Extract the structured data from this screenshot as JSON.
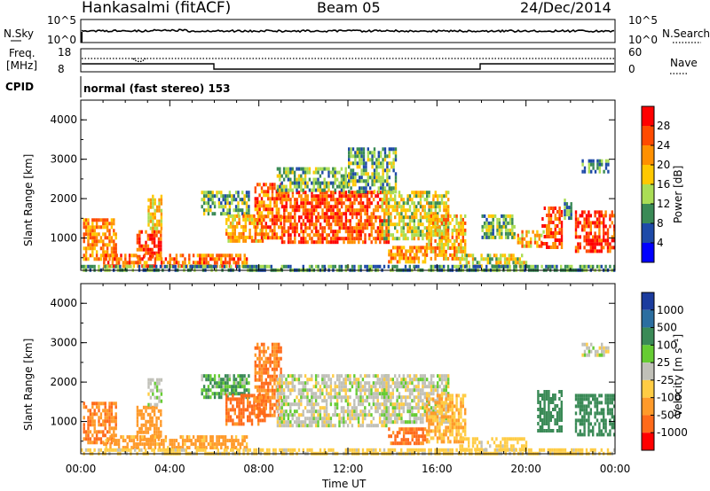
{
  "header": {
    "station": "Hankasalmi (fitACF)",
    "beam": "Beam 05",
    "date": "24/Dec/2014"
  },
  "noise_panel": {
    "left_label": "N.Sky",
    "right_label": "N.Search",
    "left_ticks": [
      "10^5",
      "10^0"
    ],
    "right_ticks": [
      "10^5",
      "10^0"
    ]
  },
  "freq_panel": {
    "left_label_1": "Freq.",
    "left_label_2": "[MHz]",
    "right_label": "Nave",
    "left_ticks": [
      "18",
      "8"
    ],
    "right_ticks": [
      "60",
      "0"
    ]
  },
  "cpid": {
    "label": "CPID",
    "value": "normal (fast stereo) 153"
  },
  "x_axis": {
    "title": "Time UT",
    "ticks": [
      "00:00",
      "04:00",
      "08:00",
      "12:00",
      "16:00",
      "20:00",
      "00:00"
    ]
  },
  "power_colorbar": {
    "title": "Power [dB]",
    "ticks": [
      "28",
      "24",
      "20",
      "16",
      "12",
      "8",
      "4"
    ],
    "colors": [
      "#ff0000",
      "#ff4a00",
      "#ff9000",
      "#ffc800",
      "#aadd55",
      "#3a8a56",
      "#1e4aa8",
      "#0000ff"
    ]
  },
  "velocity_colorbar": {
    "title": "Velocity [m s⁻¹]",
    "ticks": [
      "1000",
      "500",
      "100",
      "25",
      "-25",
      "-100",
      "-500",
      "-1000"
    ],
    "colors": [
      "#1b3c9e",
      "#2c6ea0",
      "#3a8a56",
      "#66cc33",
      "#c0c0b8",
      "#ffcc44",
      "#ff9a2a",
      "#ff6a1a",
      "#ff0000"
    ]
  },
  "chart_data": [
    {
      "type": "heatmap",
      "name": "power",
      "ylabel": "Slant Range [km]",
      "xlabel": "",
      "ylim": [
        180,
        4500
      ],
      "yticks": [
        "1000",
        "2000",
        "3000",
        "4000"
      ],
      "x_range_hours": [
        0,
        24
      ],
      "regions": [
        {
          "t0": 0.1,
          "t1": 1.6,
          "r0": 500,
          "r1": 1500,
          "level": 20
        },
        {
          "t0": 2.5,
          "t1": 3.6,
          "r0": 500,
          "r1": 1200,
          "level": 26
        },
        {
          "t0": 3.0,
          "t1": 3.6,
          "r0": 1200,
          "r1": 2100,
          "level": 16
        },
        {
          "t0": 1.0,
          "t1": 7.5,
          "r0": 300,
          "r1": 600,
          "level": 22
        },
        {
          "t0": 5.4,
          "t1": 7.6,
          "r0": 1600,
          "r1": 2200,
          "level": 10
        },
        {
          "t0": 6.5,
          "t1": 8.3,
          "r0": 900,
          "r1": 1600,
          "level": 18
        },
        {
          "t0": 7.8,
          "t1": 9.0,
          "r0": 1000,
          "r1": 2400,
          "level": 22
        },
        {
          "t0": 9.0,
          "t1": 13.8,
          "r0": 900,
          "r1": 2200,
          "level": 24
        },
        {
          "t0": 8.8,
          "t1": 12.0,
          "r0": 2200,
          "r1": 2800,
          "level": 10
        },
        {
          "t0": 12.0,
          "t1": 14.2,
          "r0": 2200,
          "r1": 3300,
          "level": 10
        },
        {
          "t0": 13.5,
          "t1": 16.5,
          "r0": 1000,
          "r1": 2200,
          "level": 14
        },
        {
          "t0": 13.8,
          "t1": 15.5,
          "r0": 400,
          "r1": 800,
          "level": 20
        },
        {
          "t0": 15.5,
          "t1": 17.3,
          "r0": 500,
          "r1": 1600,
          "level": 18
        },
        {
          "t0": 17.0,
          "t1": 20.0,
          "r0": 300,
          "r1": 600,
          "level": 14
        },
        {
          "t0": 18.0,
          "t1": 19.5,
          "r0": 1000,
          "r1": 1600,
          "level": 10
        },
        {
          "t0": 19.6,
          "t1": 20.8,
          "r0": 800,
          "r1": 1200,
          "level": 18
        },
        {
          "t0": 20.7,
          "t1": 21.6,
          "r0": 800,
          "r1": 1800,
          "level": 24
        },
        {
          "t0": 21.7,
          "t1": 22.0,
          "r0": 1500,
          "r1": 2000,
          "level": 8
        },
        {
          "t0": 22.2,
          "t1": 24.0,
          "r0": 700,
          "r1": 1700,
          "level": 26
        },
        {
          "t0": 22.5,
          "t1": 23.7,
          "r0": 2700,
          "r1": 3000,
          "level": 8
        },
        {
          "t0": 0.0,
          "t1": 24.0,
          "r0": 180,
          "r1": 320,
          "level": 8
        }
      ]
    },
    {
      "type": "heatmap",
      "name": "velocity",
      "ylabel": "Slant Range [km]",
      "xlabel": "Time UT",
      "ylim": [
        180,
        4500
      ],
      "yticks": [
        "1000",
        "2000",
        "3000",
        "4000"
      ],
      "x_range_hours": [
        0,
        24
      ],
      "regions": [
        {
          "t0": 0.1,
          "t1": 1.6,
          "r0": 500,
          "r1": 1500,
          "v": -300
        },
        {
          "t0": 2.5,
          "t1": 3.6,
          "r0": 500,
          "r1": 1400,
          "v": -200
        },
        {
          "t0": 3.0,
          "t1": 3.6,
          "r0": 1400,
          "r1": 2100,
          "v": 0
        },
        {
          "t0": 1.0,
          "t1": 7.5,
          "r0": 300,
          "r1": 650,
          "v": -150
        },
        {
          "t0": 5.4,
          "t1": 7.6,
          "r0": 1600,
          "r1": 2200,
          "v": 50
        },
        {
          "t0": 6.5,
          "t1": 8.3,
          "r0": 900,
          "r1": 1700,
          "v": -400
        },
        {
          "t0": 7.8,
          "t1": 9.0,
          "r0": 1200,
          "r1": 3000,
          "v": -300
        },
        {
          "t0": 8.8,
          "t1": 13.8,
          "r0": 900,
          "r1": 2200,
          "v": 0
        },
        {
          "t0": 13.5,
          "t1": 16.5,
          "r0": 1000,
          "r1": 2200,
          "v": 0
        },
        {
          "t0": 13.8,
          "t1": 15.6,
          "r0": 450,
          "r1": 850,
          "v": -450
        },
        {
          "t0": 15.5,
          "t1": 17.3,
          "r0": 500,
          "r1": 1700,
          "v": -100
        },
        {
          "t0": 17.0,
          "t1": 20.0,
          "r0": 300,
          "r1": 600,
          "v": -60
        },
        {
          "t0": 20.5,
          "t1": 21.6,
          "r0": 800,
          "r1": 1800,
          "v": 150
        },
        {
          "t0": 22.2,
          "t1": 24.0,
          "r0": 700,
          "r1": 1700,
          "v": 200
        },
        {
          "t0": 22.5,
          "t1": 23.7,
          "r0": 2700,
          "r1": 3000,
          "v": 0
        },
        {
          "t0": 0.0,
          "t1": 24.0,
          "r0": 180,
          "r1": 320,
          "v": -50
        }
      ]
    }
  ]
}
